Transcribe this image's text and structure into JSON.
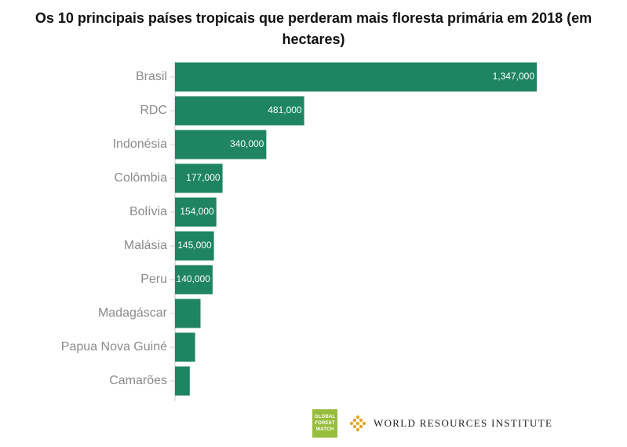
{
  "chart_data": {
    "type": "bar",
    "orientation": "horizontal",
    "title": "Os 10 principais países tropicais que perderam mais floresta primária em 2018 (em hectares)",
    "categories": [
      "Brasil",
      "RDC",
      "Indonésia",
      "Colômbia",
      "Bolívia",
      "Malásia",
      "Peru",
      "Madagáscar",
      "Papua Nova Guiné",
      "Camarões"
    ],
    "values": [
      1347000,
      481000,
      340000,
      177000,
      154000,
      145000,
      140000,
      95000,
      75000,
      55000
    ],
    "data_labels": [
      "1,347,000",
      "481,000",
      "340,000",
      "177,000",
      "154,000",
      "145,000",
      "140,000",
      "",
      "",
      ""
    ],
    "xlim": [
      0,
      1347000
    ],
    "bar_color": "#1e8461",
    "grid": false,
    "legend": "none"
  },
  "footer": {
    "gfw_logo": [
      "GLOBAL",
      "FOREST",
      "WATCH"
    ],
    "wri_name": "WORLD RESOURCES INSTITUTE"
  }
}
